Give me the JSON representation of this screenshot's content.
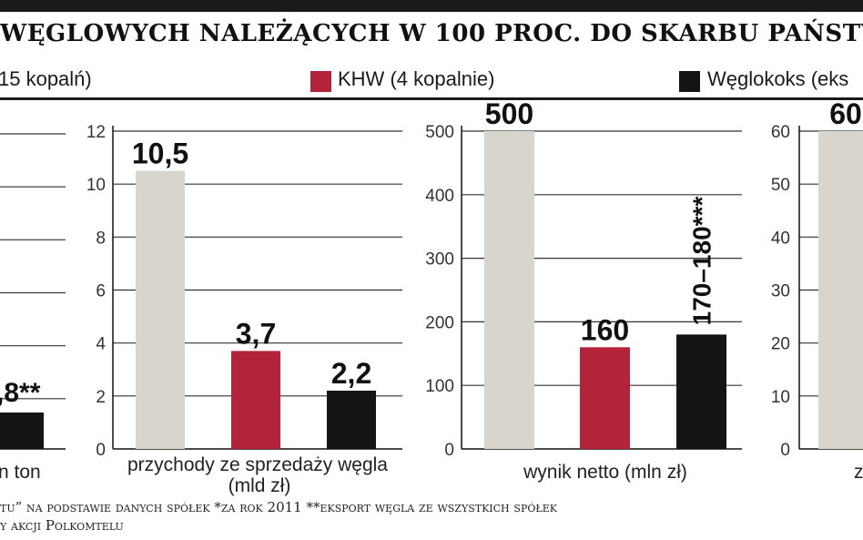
{
  "header": {
    "title": "WĘGLOWYCH NALEŻĄCYCH W 100 PROC. DO SKARBU PAŃSTW"
  },
  "legend": [
    {
      "label": "15 kopalń)",
      "color": "#d8d6cc"
    },
    {
      "label": "KHW (4 kopalnie)",
      "color": "#b3243a"
    },
    {
      "label": "Węglokoks (eks",
      "color": "#141414"
    }
  ],
  "footer": {
    "line1": "tu” na podstawie danych spółek *za rok 2011 **eksport węgla ze wszystkich spółek",
    "line2": "y akcji Polkomtelu"
  },
  "chart_data": [
    {
      "type": "bar",
      "xlabel": "n ton",
      "categories": [
        "",
        "",
        "Węglokoks"
      ],
      "values": [
        null,
        null,
        null
      ],
      "data_labels": [
        "",
        "",
        ",8**"
      ],
      "partial": true
    },
    {
      "type": "bar",
      "categories": [
        "",
        "KHW",
        "Węglokoks"
      ],
      "values": [
        10.5,
        3.7,
        2.2
      ],
      "data_labels": [
        "10,5",
        "3,7",
        "2,2"
      ],
      "xlabel": "przychody ze sprzedaży węgla",
      "xlabel2": "(mld zł)",
      "ylim": [
        0,
        12
      ],
      "yticks": [
        "0",
        "2",
        "4",
        "6",
        "8",
        "10",
        "12"
      ],
      "colors": [
        "#d8d6cc",
        "#b3243a",
        "#141414"
      ],
      "grid": true
    },
    {
      "type": "bar",
      "categories": [
        "",
        "KHW",
        "Węglokoks"
      ],
      "values": [
        500,
        160,
        180
      ],
      "data_labels": [
        "500",
        "160",
        "170–180***"
      ],
      "xlabel": "wynik netto (mln zł)",
      "ylim": [
        0,
        500
      ],
      "yticks": [
        "0",
        "100",
        "200",
        "300",
        "400",
        "500"
      ],
      "colors": [
        "#d8d6cc",
        "#b3243a",
        "#141414"
      ],
      "grid": true
    },
    {
      "type": "bar",
      "categories": [
        ""
      ],
      "values": [
        60
      ],
      "data_labels": [
        "60"
      ],
      "xlabel": "z",
      "ylim": [
        0,
        60
      ],
      "yticks": [
        "0",
        "10",
        "20",
        "30",
        "40",
        "50",
        "60"
      ],
      "colors": [
        "#d8d6cc"
      ],
      "grid": true,
      "partial": true
    }
  ]
}
